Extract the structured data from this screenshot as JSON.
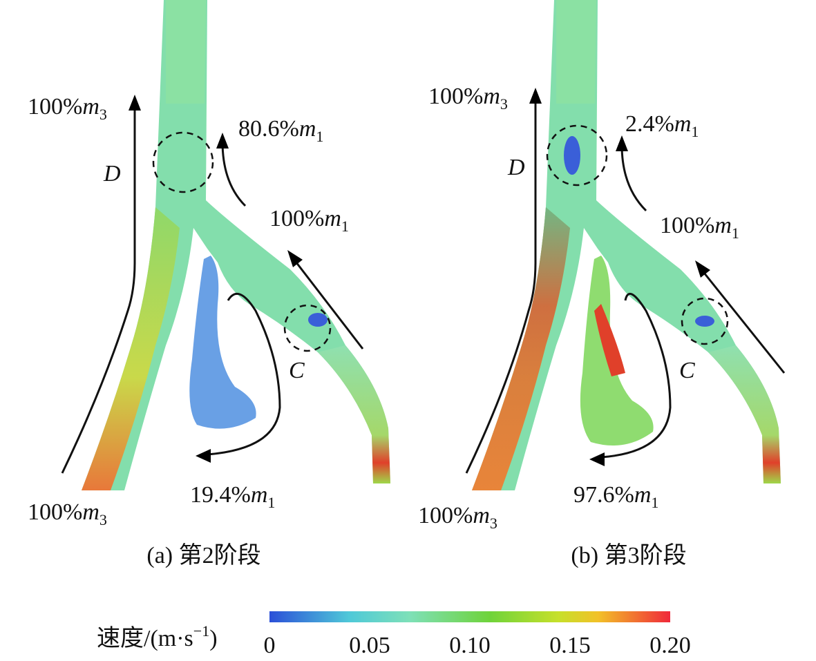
{
  "panels": [
    {
      "caption": "(a) 第2阶段",
      "flows": [
        {
          "text": "100%",
          "var": "m",
          "sub": "3"
        },
        {
          "text": "80.6%",
          "var": "m",
          "sub": "1"
        },
        {
          "text": "100%",
          "var": "m",
          "sub": "1"
        },
        {
          "text": "19.4%",
          "var": "m",
          "sub": "1"
        },
        {
          "text": "100%",
          "var": "m",
          "sub": "3"
        }
      ],
      "regions": [
        "D",
        "C"
      ]
    },
    {
      "caption": "(b) 第3阶段",
      "flows": [
        {
          "text": "100%",
          "var": "m",
          "sub": "3"
        },
        {
          "text": "2.4%",
          "var": "m",
          "sub": "1"
        },
        {
          "text": "100%",
          "var": "m",
          "sub": "1"
        },
        {
          "text": "97.6%",
          "var": "m",
          "sub": "1"
        },
        {
          "text": "100%",
          "var": "m",
          "sub": "3"
        }
      ],
      "regions": [
        "D",
        "C"
      ]
    }
  ],
  "colorbar": {
    "label": {
      "text": "速度/(m·s",
      "sup": "−1",
      "end": ")"
    },
    "ticks": [
      "0",
      "0.05",
      "0.10",
      "0.15",
      "0.20"
    ]
  }
}
